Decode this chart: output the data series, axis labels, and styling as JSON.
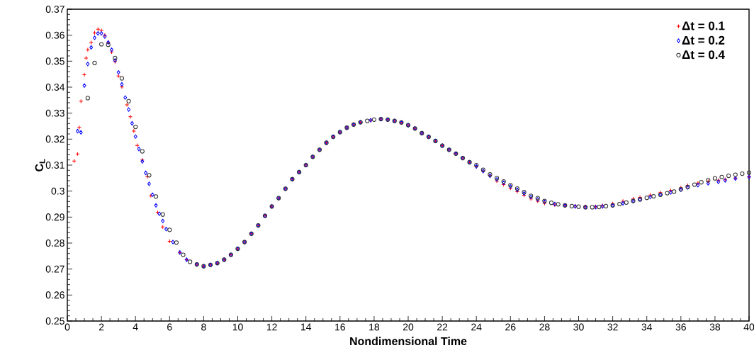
{
  "chart_data": {
    "type": "scatter",
    "xlabel": "Nondimensional Time",
    "ylabel": "C$_{L}$",
    "xlim": [
      0,
      40
    ],
    "ylim": [
      0.25,
      0.37
    ],
    "xticks": [
      0,
      2,
      4,
      6,
      8,
      10,
      12,
      14,
      16,
      18,
      20,
      22,
      24,
      26,
      28,
      30,
      32,
      34,
      36,
      38,
      40
    ],
    "yticks": [
      0.25,
      0.26,
      0.27,
      0.28,
      0.29,
      0.3,
      0.31,
      0.32,
      0.33,
      0.34,
      0.35,
      0.36,
      0.37
    ],
    "grid": false,
    "legend": "top right",
    "series": [
      {
        "name": "Δt = 0.1",
        "color": "#ff0000",
        "marker": "cross",
        "x": [
          0.4,
          0.6,
          0.7,
          0.8,
          1.0,
          1.1,
          1.2,
          1.4,
          1.6,
          1.8,
          2.0,
          2.2,
          2.4,
          2.6,
          2.8,
          3.0,
          3.2,
          3.5,
          3.7,
          3.9,
          4.1,
          4.4,
          4.7,
          4.9,
          5.3,
          5.6,
          6.0,
          6.6,
          7.0,
          7.6,
          8.0,
          8.4,
          8.8,
          9.2,
          9.6,
          10.0,
          10.4,
          10.8,
          11.2,
          11.6,
          12.0,
          12.4,
          12.8,
          13.2,
          13.6,
          14.0,
          14.4,
          14.8,
          15.2,
          15.6,
          16.0,
          16.4,
          16.8,
          17.2,
          17.8,
          18.4,
          18.8,
          19.2,
          19.6,
          20.0,
          20.4,
          20.8,
          21.2,
          21.6,
          22.0,
          22.4,
          22.8,
          23.2,
          23.6,
          24.0,
          24.4,
          24.8,
          25.2,
          25.6,
          26.0,
          26.4,
          26.8,
          27.2,
          27.6,
          28.0,
          28.6,
          29.2,
          29.8,
          30.4,
          31.0,
          31.4,
          32.0,
          32.6,
          33.2,
          33.6,
          34.2,
          34.8,
          35.4,
          36.0,
          36.4,
          37.0,
          37.6,
          38.2,
          38.6,
          39.2,
          40.0
        ],
        "values": [
          0.3116,
          0.3143,
          0.3245,
          0.3346,
          0.3448,
          0.3512,
          0.3544,
          0.3572,
          0.3609,
          0.3623,
          0.3618,
          0.36,
          0.3572,
          0.3535,
          0.3498,
          0.3443,
          0.3401,
          0.3332,
          0.3286,
          0.3231,
          0.3176,
          0.312,
          0.3056,
          0.2982,
          0.2918,
          0.2862,
          0.2807,
          0.2764,
          0.2736,
          0.2718,
          0.2711,
          0.2716,
          0.2723,
          0.2736,
          0.2755,
          0.2778,
          0.2804,
          0.2836,
          0.2868,
          0.2905,
          0.2941,
          0.2973,
          0.3009,
          0.3046,
          0.3073,
          0.31,
          0.3132,
          0.3159,
          0.3186,
          0.3209,
          0.3227,
          0.3244,
          0.3256,
          0.3265,
          0.3273,
          0.3277,
          0.3275,
          0.327,
          0.3264,
          0.3254,
          0.3241,
          0.3223,
          0.3209,
          0.3193,
          0.3175,
          0.3159,
          0.3144,
          0.3127,
          0.3111,
          0.3095,
          0.3077,
          0.3059,
          0.3038,
          0.3025,
          0.3011,
          0.2998,
          0.2984,
          0.297,
          0.2961,
          0.2953,
          0.2947,
          0.2945,
          0.2943,
          0.2941,
          0.2941,
          0.2945,
          0.2952,
          0.2961,
          0.297,
          0.2976,
          0.2985,
          0.2994,
          0.3003,
          0.3013,
          0.3022,
          0.3031,
          0.3037,
          0.3042,
          0.3045,
          0.305,
          0.3055
        ]
      },
      {
        "name": "Δt = 0.2",
        "color": "#0000ff",
        "marker": "diamond",
        "x": [
          0.6,
          0.8,
          1.0,
          1.2,
          1.4,
          1.6,
          1.8,
          2.0,
          2.2,
          2.4,
          2.6,
          2.8,
          3.0,
          3.2,
          3.4,
          3.6,
          3.8,
          4.0,
          4.2,
          4.4,
          4.6,
          4.8,
          5.0,
          5.2,
          5.4,
          5.6,
          5.8,
          6.2,
          6.6,
          7.0,
          7.6,
          8.0,
          8.4,
          8.8,
          9.2,
          9.6,
          10.0,
          10.4,
          10.8,
          11.2,
          11.6,
          12.0,
          12.4,
          12.8,
          13.2,
          13.6,
          14.0,
          14.4,
          14.8,
          15.2,
          15.6,
          16.0,
          16.4,
          16.8,
          17.2,
          17.8,
          18.4,
          18.8,
          19.2,
          19.6,
          20.0,
          20.4,
          20.8,
          21.2,
          21.6,
          22.0,
          22.4,
          22.8,
          23.2,
          23.6,
          24.0,
          24.4,
          24.8,
          25.2,
          25.6,
          26.0,
          26.4,
          26.8,
          27.2,
          27.6,
          28.0,
          28.6,
          29.2,
          29.8,
          30.4,
          31.0,
          31.4,
          32.0,
          32.6,
          33.2,
          33.6,
          34.2,
          34.8,
          35.4,
          36.0,
          36.4,
          37.0,
          37.6,
          38.2,
          38.6,
          39.2,
          40.0
        ],
        "values": [
          0.3231,
          0.3226,
          0.3406,
          0.3489,
          0.3553,
          0.359,
          0.3607,
          0.3607,
          0.3595,
          0.3572,
          0.3544,
          0.3503,
          0.3457,
          0.3411,
          0.336,
          0.3314,
          0.3261,
          0.321,
          0.3162,
          0.3114,
          0.307,
          0.3028,
          0.2986,
          0.2945,
          0.2913,
          0.2885,
          0.2854,
          0.2804,
          0.2764,
          0.2736,
          0.2718,
          0.2711,
          0.2716,
          0.2723,
          0.2736,
          0.2755,
          0.2778,
          0.2804,
          0.2836,
          0.2868,
          0.2905,
          0.2941,
          0.2973,
          0.3009,
          0.3046,
          0.3073,
          0.31,
          0.3132,
          0.3159,
          0.3186,
          0.3209,
          0.3227,
          0.3244,
          0.3256,
          0.3265,
          0.3273,
          0.3277,
          0.3275,
          0.327,
          0.3264,
          0.3254,
          0.3241,
          0.3223,
          0.3209,
          0.3193,
          0.3175,
          0.3159,
          0.3144,
          0.3127,
          0.3111,
          0.3095,
          0.3077,
          0.3059,
          0.3045,
          0.3032,
          0.3018,
          0.3005,
          0.2991,
          0.2977,
          0.2968,
          0.2959,
          0.295,
          0.2945,
          0.2941,
          0.2938,
          0.2938,
          0.2941,
          0.2945,
          0.2953,
          0.2962,
          0.2968,
          0.2977,
          0.2986,
          0.2995,
          0.3005,
          0.3014,
          0.3023,
          0.303,
          0.3036,
          0.3041,
          0.3048,
          0.3054
        ]
      },
      {
        "name": "Δt = 0.4",
        "color": "#333333",
        "marker": "circle",
        "x": [
          1.2,
          1.6,
          2.0,
          2.4,
          2.8,
          3.2,
          3.6,
          4.0,
          4.4,
          4.8,
          5.2,
          5.6,
          6.0,
          6.4,
          6.8,
          7.2,
          7.6,
          8.0,
          8.4,
          8.8,
          9.2,
          9.6,
          10.0,
          10.4,
          10.8,
          11.2,
          11.6,
          12.0,
          12.4,
          12.8,
          13.2,
          13.6,
          14.0,
          14.4,
          14.8,
          15.2,
          15.6,
          16.0,
          16.4,
          16.8,
          17.2,
          17.6,
          18.0,
          18.4,
          18.8,
          19.2,
          19.6,
          20.0,
          20.4,
          20.8,
          21.2,
          21.6,
          22.0,
          22.4,
          22.8,
          23.2,
          23.6,
          24.0,
          24.4,
          24.8,
          25.2,
          25.6,
          26.0,
          26.4,
          26.8,
          27.2,
          27.6,
          28.0,
          28.4,
          28.8,
          29.2,
          29.6,
          30.0,
          30.4,
          30.8,
          31.2,
          31.6,
          32.0,
          32.4,
          32.8,
          33.2,
          33.6,
          34.0,
          34.4,
          34.8,
          35.2,
          35.6,
          36.0,
          36.4,
          36.8,
          37.2,
          37.6,
          38.0,
          38.4,
          38.8,
          39.2,
          39.6,
          40.0
        ],
        "values": [
          0.3358,
          0.3493,
          0.3565,
          0.3563,
          0.3512,
          0.3434,
          0.3346,
          0.3247,
          0.3153,
          0.3061,
          0.2979,
          0.291,
          0.2851,
          0.2802,
          0.2755,
          0.2728,
          0.2718,
          0.2711,
          0.2716,
          0.2723,
          0.2736,
          0.2755,
          0.2778,
          0.2804,
          0.2836,
          0.2868,
          0.2905,
          0.2941,
          0.2973,
          0.3009,
          0.3046,
          0.3073,
          0.31,
          0.3132,
          0.3159,
          0.3186,
          0.3209,
          0.3227,
          0.3244,
          0.3256,
          0.3265,
          0.327,
          0.3275,
          0.3277,
          0.3275,
          0.327,
          0.3264,
          0.3254,
          0.3241,
          0.3223,
          0.3209,
          0.3193,
          0.3175,
          0.3159,
          0.3144,
          0.3127,
          0.3111,
          0.31,
          0.3082,
          0.3064,
          0.305,
          0.3037,
          0.3023,
          0.301,
          0.2996,
          0.2982,
          0.2973,
          0.2962,
          0.2955,
          0.2949,
          0.2945,
          0.2942,
          0.294,
          0.2938,
          0.2938,
          0.2939,
          0.2942,
          0.2945,
          0.295,
          0.2956,
          0.2962,
          0.2968,
          0.2974,
          0.298,
          0.2986,
          0.2992,
          0.2998,
          0.3007,
          0.3016,
          0.3025,
          0.3034,
          0.3042,
          0.3049,
          0.3054,
          0.3059,
          0.3063,
          0.3067,
          0.3071
        ]
      }
    ]
  }
}
